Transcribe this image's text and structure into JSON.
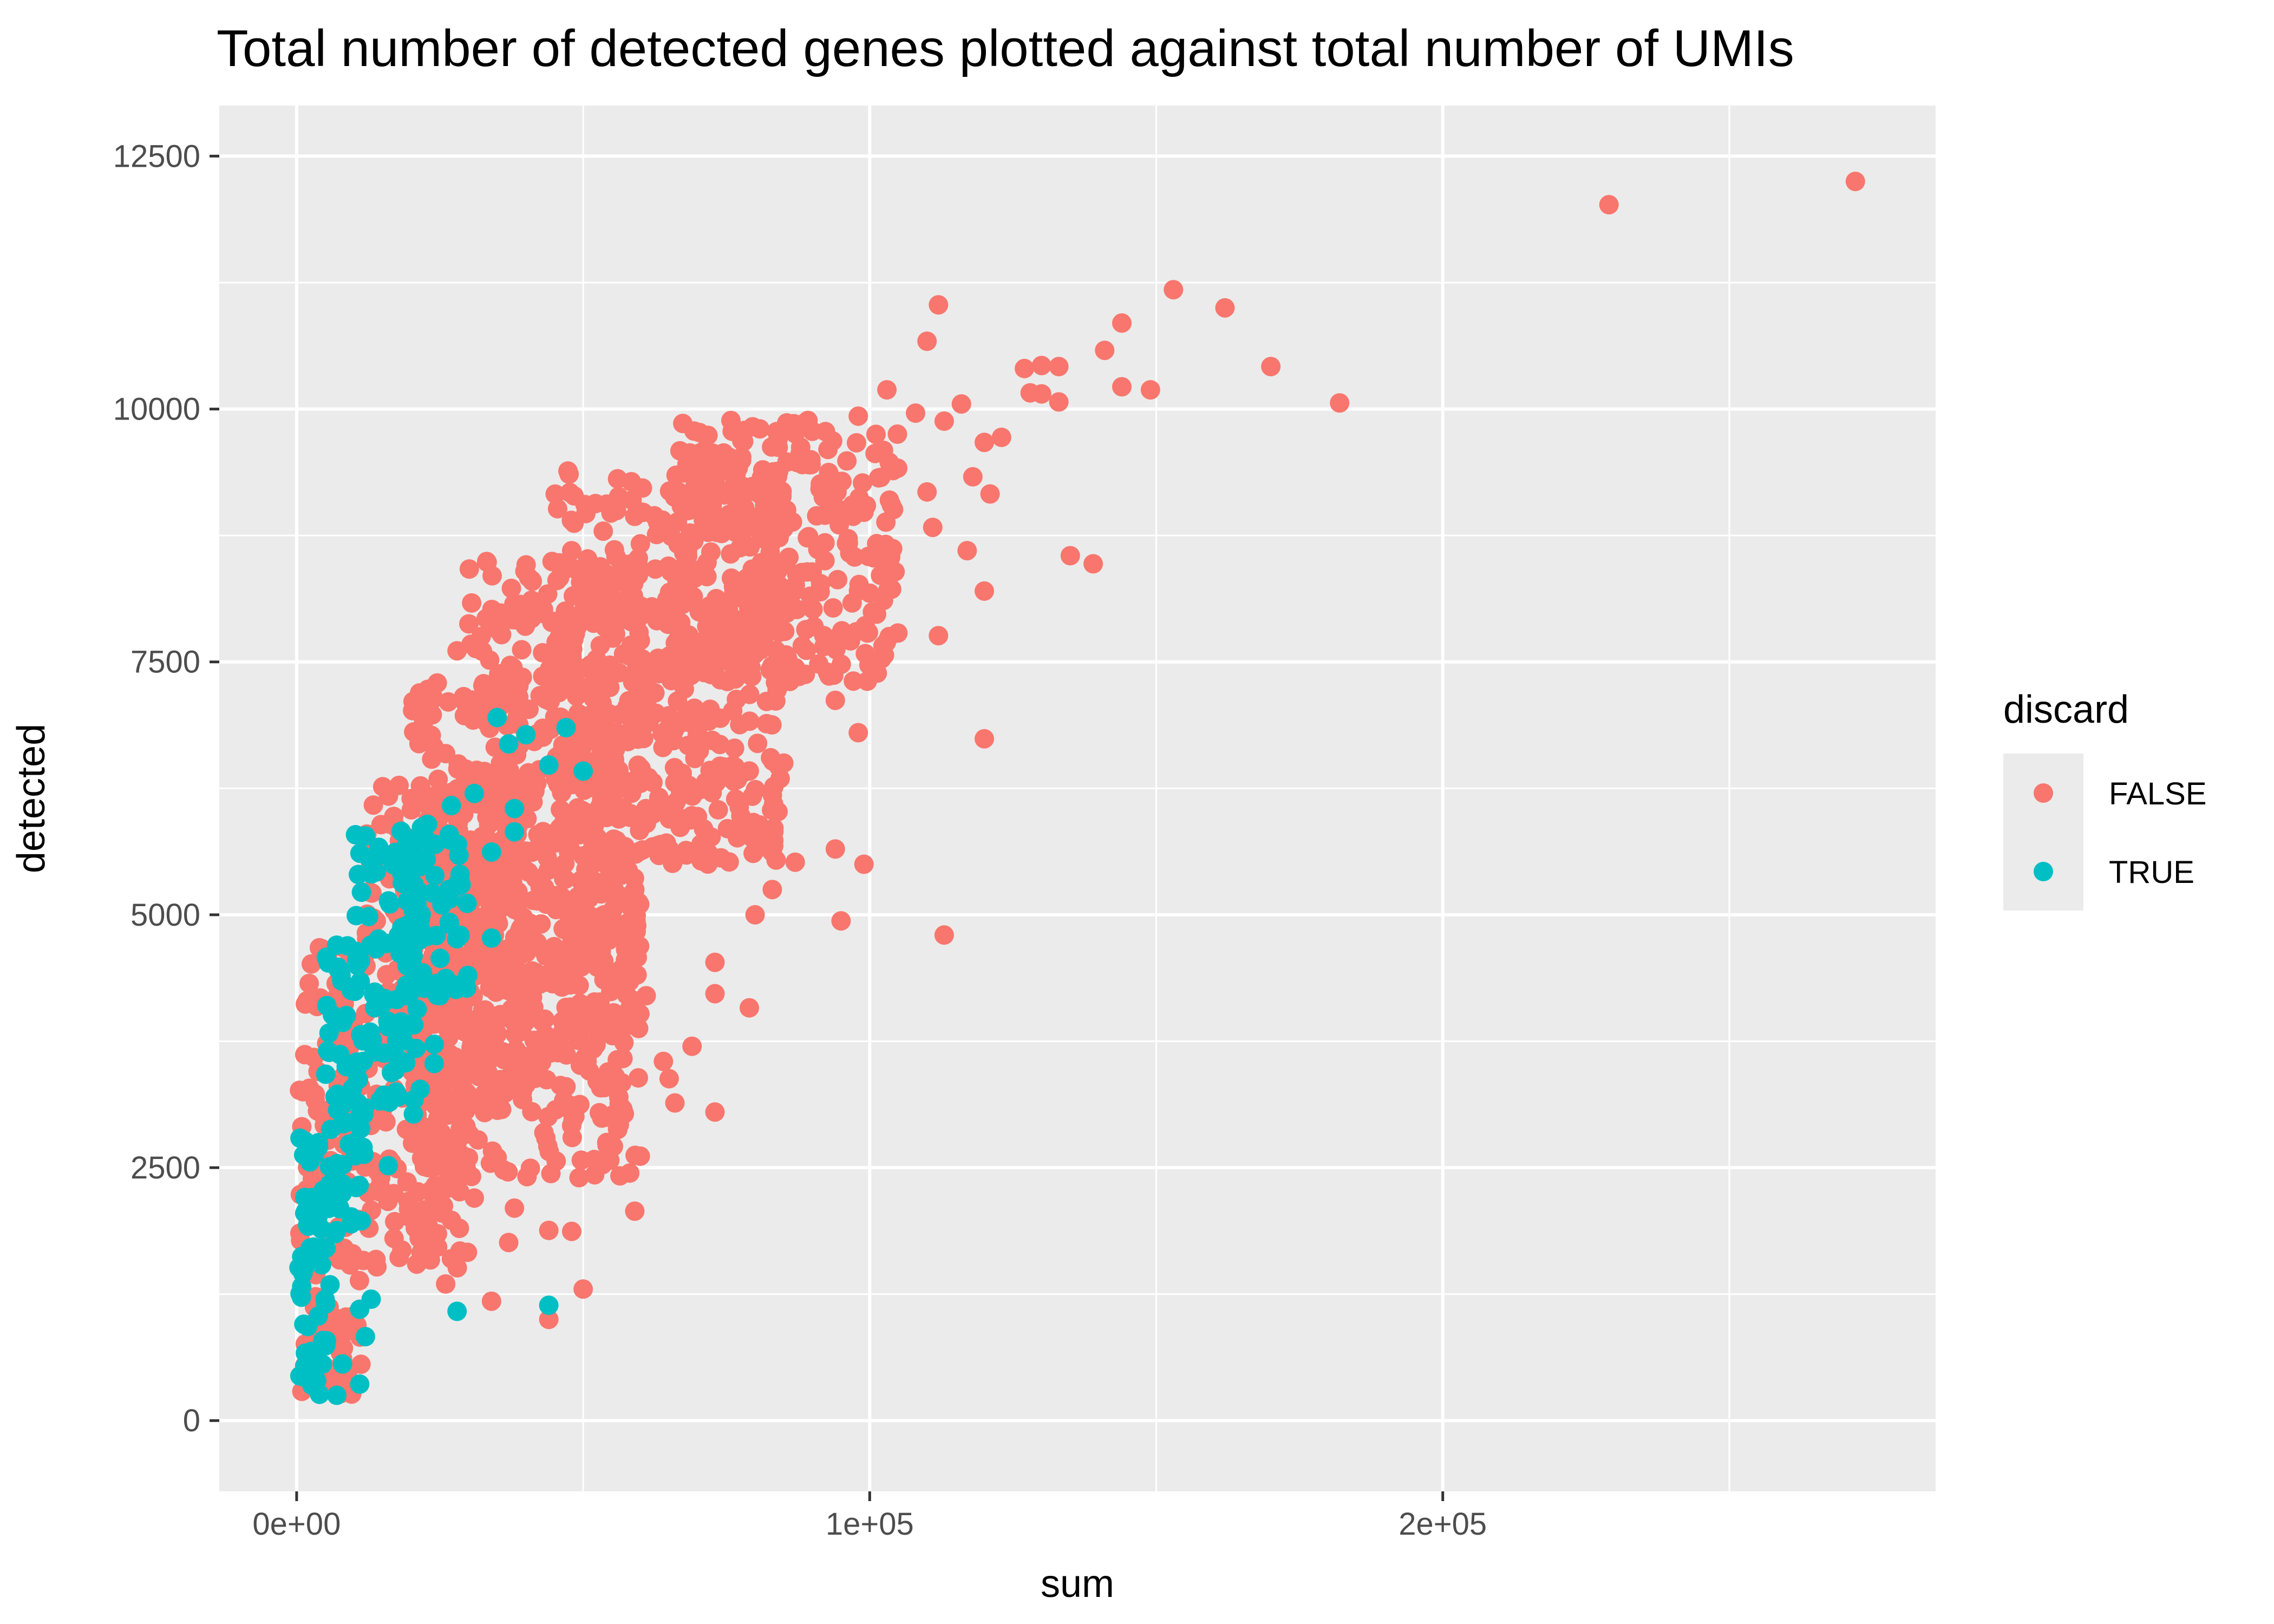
{
  "chart_data": {
    "type": "scatter",
    "title": "Total number of detected genes plotted against total number of UMIs",
    "xlabel": "sum",
    "ylabel": "detected",
    "xlim": [
      -13500,
      286000
    ],
    "ylim": [
      -700,
      13000
    ],
    "x_ticks": [
      0,
      100000,
      200000
    ],
    "x_tick_labels": [
      "0e+00",
      "1e+05",
      "2e+05"
    ],
    "x_minor_ticks": [
      50000,
      150000,
      250000
    ],
    "y_ticks": [
      0,
      2500,
      5000,
      7500,
      10000,
      12500
    ],
    "y_tick_labels": [
      "0",
      "2500",
      "5000",
      "7500",
      "10000",
      "12500"
    ],
    "y_minor_ticks": [
      1250,
      3750,
      6250,
      8750,
      11250
    ],
    "grid": true,
    "legend": {
      "title": "discard",
      "position": "right",
      "entries": [
        {
          "label": "FALSE",
          "color": "#F8766D"
        },
        {
          "label": "TRUE",
          "color": "#00BFC4"
        }
      ]
    },
    "series": [
      {
        "name": "FALSE",
        "color": "#F8766D",
        "points": [
          [
            272000,
            12250
          ],
          [
            229000,
            12020
          ],
          [
            153000,
            11180
          ],
          [
            162000,
            11000
          ],
          [
            112000,
            11030
          ],
          [
            144000,
            10850
          ],
          [
            110000,
            10670
          ],
          [
            141000,
            10580
          ],
          [
            170000,
            10420
          ],
          [
            133000,
            10420
          ],
          [
            130000,
            10430
          ],
          [
            127000,
            10400
          ],
          [
            144000,
            10220
          ],
          [
            149000,
            10190
          ],
          [
            128000,
            10160
          ],
          [
            130000,
            10150
          ],
          [
            103000,
            10190
          ],
          [
            133000,
            10070
          ],
          [
            182000,
            10060
          ],
          [
            116000,
            10050
          ],
          [
            123000,
            9720
          ],
          [
            120000,
            9670
          ],
          [
            108000,
            9960
          ],
          [
            113000,
            9880
          ],
          [
            98000,
            9930
          ],
          [
            90000,
            9780
          ],
          [
            84000,
            9700
          ],
          [
            76000,
            9780
          ],
          [
            78000,
            9680
          ],
          [
            69000,
            9430
          ],
          [
            72000,
            9530
          ],
          [
            56000,
            9310
          ],
          [
            118000,
            9330
          ],
          [
            121000,
            9160
          ],
          [
            110000,
            9180
          ],
          [
            99000,
            8980
          ],
          [
            111000,
            8830
          ],
          [
            104000,
            8620
          ],
          [
            117000,
            8600
          ],
          [
            135000,
            8550
          ],
          [
            139000,
            8470
          ],
          [
            120000,
            8200
          ],
          [
            112000,
            7760
          ],
          [
            100000,
            8180
          ],
          [
            92000,
            7760
          ],
          [
            81000,
            7620
          ],
          [
            45000,
            7900
          ],
          [
            41000,
            8110
          ],
          [
            28000,
            7610
          ],
          [
            94000,
            7120
          ],
          [
            98000,
            6800
          ],
          [
            120000,
            6740
          ],
          [
            85000,
            6500
          ],
          [
            84000,
            6020
          ],
          [
            94000,
            5650
          ],
          [
            99000,
            5500
          ],
          [
            113000,
            4800
          ],
          [
            95000,
            4940
          ],
          [
            87000,
            5520
          ],
          [
            83000,
            5250
          ],
          [
            80000,
            5000
          ],
          [
            79000,
            4080
          ],
          [
            73000,
            4530
          ],
          [
            73000,
            4220
          ],
          [
            73000,
            3050
          ],
          [
            69000,
            3700
          ],
          [
            65000,
            3380
          ],
          [
            66000,
            3140
          ],
          [
            59000,
            2070
          ],
          [
            50000,
            1300
          ],
          [
            44000,
            1000
          ],
          [
            37000,
            1760
          ],
          [
            34000,
            1180
          ],
          [
            27000,
            1600
          ],
          [
            26000,
            1350
          ],
          [
            56000,
            2880
          ],
          [
            54000,
            3000
          ],
          [
            48000,
            1870
          ],
          [
            44000,
            1880
          ],
          [
            38000,
            2100
          ],
          [
            31000,
            2200
          ],
          [
            27000,
            1980
          ],
          [
            23000,
            1920
          ],
          [
            17000,
            1800
          ],
          [
            14000,
            1520
          ],
          [
            9000,
            1000
          ],
          [
            6000,
            500
          ],
          [
            71000,
            5850
          ],
          [
            65000,
            5650
          ],
          [
            58000,
            4800
          ],
          [
            61000,
            4200
          ],
          [
            64000,
            3550
          ],
          [
            47000,
            3300
          ],
          [
            52000,
            2430
          ],
          [
            41000,
            3500
          ],
          [
            30000,
            3120
          ],
          [
            22000,
            3480
          ],
          [
            35000,
            2600
          ],
          [
            60000,
            6300
          ],
          [
            67000,
            6200
          ]
        ],
        "bands": [
          {
            "x": [
              400,
              12000
            ],
            "y": [
              250,
              4700
            ]
          },
          {
            "x": [
              12000,
              30000
            ],
            "y": [
              1500,
              6300
            ]
          },
          {
            "x": [
              20000,
              40000
            ],
            "y": [
              3000,
              7300
            ]
          },
          {
            "x": [
              30000,
              60000
            ],
            "y": [
              3800,
              8500
            ]
          },
          {
            "x": [
              45000,
              85000
            ],
            "y": [
              5500,
              9400
            ]
          },
          {
            "x": [
              65000,
              105000
            ],
            "y": [
              7300,
              9900
            ]
          },
          {
            "x": [
              20000,
              60000
            ],
            "y": [
              2400,
              5800
            ]
          }
        ]
      },
      {
        "name": "TRUE",
        "color": "#00BFC4",
        "points": [
          [
            35000,
            6950
          ],
          [
            40000,
            6780
          ],
          [
            47000,
            6850
          ],
          [
            44000,
            6480
          ],
          [
            50000,
            6420
          ],
          [
            37000,
            6690
          ],
          [
            31000,
            6200
          ],
          [
            27000,
            6080
          ],
          [
            38000,
            6050
          ],
          [
            34000,
            5620
          ],
          [
            38000,
            5820
          ],
          [
            25000,
            5180
          ],
          [
            28000,
            5300
          ],
          [
            34000,
            4770
          ],
          [
            25000,
            4200
          ],
          [
            24000,
            3720
          ],
          [
            24000,
            3530
          ],
          [
            16000,
            2520
          ],
          [
            13000,
            1200
          ],
          [
            11000,
            1100
          ],
          [
            12000,
            830
          ],
          [
            11000,
            360
          ],
          [
            28000,
            1080
          ],
          [
            44000,
            1140
          ],
          [
            8000,
            560
          ],
          [
            7000,
            250
          ],
          [
            4000,
            260
          ]
        ],
        "bands": [
          {
            "x": [
              400,
              6000
            ],
            "y": [
              200,
              2800
            ]
          },
          {
            "x": [
              5000,
              12000
            ],
            "y": [
              1800,
              4800
            ]
          },
          {
            "x": [
              10000,
              22000
            ],
            "y": [
              3000,
              5800
            ]
          },
          {
            "x": [
              18000,
              30000
            ],
            "y": [
              4200,
              5900
            ]
          }
        ]
      }
    ]
  }
}
